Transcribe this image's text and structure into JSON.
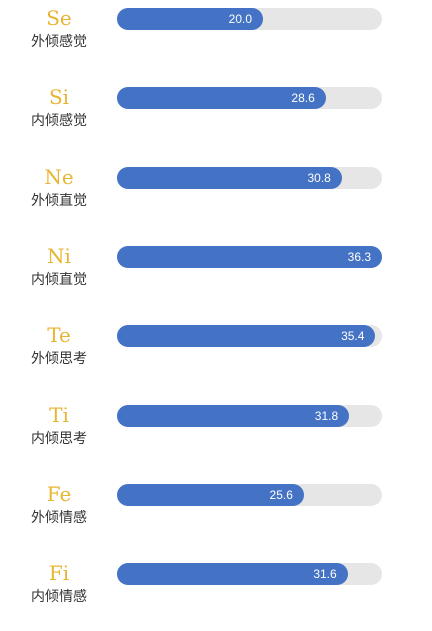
{
  "colors": {
    "code": "#e8b531",
    "bar": "#4472c4",
    "track": "#e6e6e6",
    "label": "#333333",
    "value_text": "#ffffff"
  },
  "chart_data": {
    "type": "bar",
    "orientation": "horizontal",
    "categories": [
      "Se",
      "Si",
      "Ne",
      "Ni",
      "Te",
      "Ti",
      "Fe",
      "Fi"
    ],
    "category_descriptions": [
      "外倾感觉",
      "内倾感觉",
      "外倾直觉",
      "内倾直觉",
      "外倾思考",
      "内倾思考",
      "外倾情感",
      "内倾情感"
    ],
    "values": [
      20.0,
      28.6,
      30.8,
      36.3,
      35.4,
      31.8,
      25.6,
      31.6
    ],
    "value_labels": [
      "20.0",
      "28.6",
      "30.8",
      "36.3",
      "35.4",
      "31.8",
      "25.6",
      "31.6"
    ],
    "xlim": [
      0,
      36.3
    ],
    "grid": false,
    "legend": "none"
  }
}
